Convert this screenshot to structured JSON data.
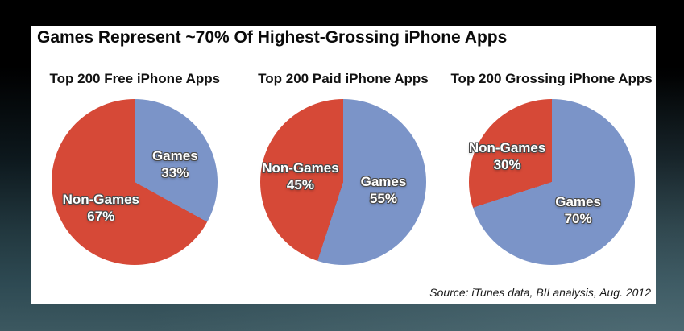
{
  "page": {
    "title": "Games Represent ~70% Of Highest-Grossing iPhone Apps",
    "source": "Source: iTunes data, BII analysis, Aug. 2012"
  },
  "colors": {
    "games_blue": "#7b94c8",
    "non_games_red": "#d64937",
    "card_background": "#ffffff",
    "title_text": "#0a0a0a",
    "label_text": "#ffffff"
  },
  "chart_data": [
    {
      "type": "pie",
      "title": "Top 200 Free iPhone Apps",
      "start_angle_deg": 0,
      "direction": "clockwise",
      "slices": [
        {
          "label": "Games",
          "value": 33,
          "percent_label": "33%",
          "color": "#7b94c8"
        },
        {
          "label": "Non-Games",
          "value": 67,
          "percent_label": "67%",
          "color": "#d64937"
        }
      ]
    },
    {
      "type": "pie",
      "title": "Top 200 Paid iPhone Apps",
      "start_angle_deg": 0,
      "direction": "clockwise",
      "slices": [
        {
          "label": "Games",
          "value": 55,
          "percent_label": "55%",
          "color": "#7b94c8"
        },
        {
          "label": "Non-Games",
          "value": 45,
          "percent_label": "45%",
          "color": "#d64937"
        }
      ]
    },
    {
      "type": "pie",
      "title": "Top 200 Grossing iPhone Apps",
      "start_angle_deg": 0,
      "direction": "clockwise",
      "slices": [
        {
          "label": "Games",
          "value": 70,
          "percent_label": "70%",
          "color": "#7b94c8"
        },
        {
          "label": "Non-Games",
          "value": 30,
          "percent_label": "30%",
          "color": "#d64937"
        }
      ]
    }
  ]
}
